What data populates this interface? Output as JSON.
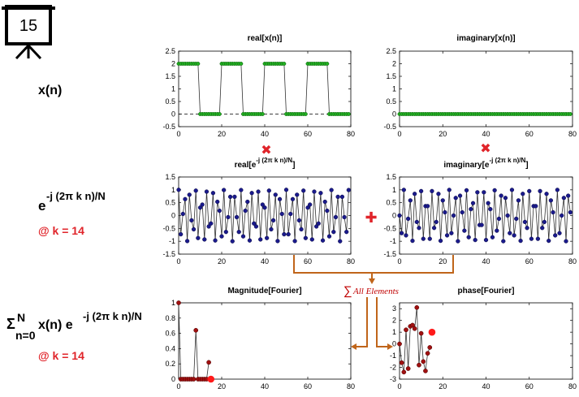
{
  "slide_number": "15",
  "row_labels": {
    "signal": "x(n)",
    "basis_prefix": "e",
    "basis_exponent": "-j (2π k n)/N",
    "basis_k": "@ k = 14",
    "sum_sigma": "Σ",
    "sum_upper": "N",
    "sum_lower": "n=0",
    "sum_body": "x(n) e",
    "sum_exponent": "-j (2π k n)/N",
    "sum_k": "@ k = 14"
  },
  "operators": {
    "multiply_symbol": "✖",
    "add_symbol": "✚",
    "sum_symbol": "∑",
    "sum_label": "All Elements"
  },
  "colors": {
    "green_marker": "#22b022",
    "blue_marker": "#1a1a8c",
    "red_marker": "#a01010",
    "highlight_red": "#ff1a1a",
    "line_gray": "#333333",
    "arrow_orange": "#c0651a",
    "operator_red": "#e0242a"
  },
  "chart_data": [
    {
      "id": "real-x",
      "type": "line",
      "title": "real[x(n)]",
      "marker_color": "green",
      "x": [
        0,
        1,
        2,
        3,
        4,
        5,
        6,
        7,
        8,
        9,
        10,
        11,
        12,
        13,
        14,
        15,
        16,
        17,
        18,
        19,
        20,
        21,
        22,
        23,
        24,
        25,
        26,
        27,
        28,
        29,
        30,
        31,
        32,
        33,
        34,
        35,
        36,
        37,
        38,
        39,
        40,
        41,
        42,
        43,
        44,
        45,
        46,
        47,
        48,
        49,
        50,
        51,
        52,
        53,
        54,
        55,
        56,
        57,
        58,
        59,
        60,
        61,
        62,
        63,
        64,
        65,
        66,
        67,
        68,
        69,
        70,
        71,
        72,
        73,
        74,
        75,
        76,
        77,
        78,
        79
      ],
      "y": [
        2,
        2,
        2,
        2,
        2,
        2,
        2,
        2,
        2,
        2,
        0,
        0,
        0,
        0,
        0,
        0,
        0,
        0,
        0,
        0,
        2,
        2,
        2,
        2,
        2,
        2,
        2,
        2,
        2,
        2,
        0,
        0,
        0,
        0,
        0,
        0,
        0,
        0,
        0,
        0,
        2,
        2,
        2,
        2,
        2,
        2,
        2,
        2,
        2,
        2,
        0,
        0,
        0,
        0,
        0,
        0,
        0,
        0,
        0,
        0,
        2,
        2,
        2,
        2,
        2,
        2,
        2,
        2,
        2,
        2,
        0,
        0,
        0,
        0,
        0,
        0,
        0,
        0,
        0,
        0
      ],
      "xlim": [
        0,
        80
      ],
      "ylim": [
        -0.5,
        2.5
      ],
      "xticks": [
        0,
        20,
        40,
        60,
        80
      ],
      "yticks": [
        -0.5,
        0,
        0.5,
        1,
        1.5,
        2,
        2.5
      ],
      "zero_line": "dashed"
    },
    {
      "id": "imag-x",
      "type": "line",
      "title": "imaginary[x(n)]",
      "marker_color": "green",
      "x": [
        0,
        1,
        2,
        3,
        4,
        5,
        6,
        7,
        8,
        9,
        10,
        11,
        12,
        13,
        14,
        15,
        16,
        17,
        18,
        19,
        20,
        21,
        22,
        23,
        24,
        25,
        26,
        27,
        28,
        29,
        30,
        31,
        32,
        33,
        34,
        35,
        36,
        37,
        38,
        39,
        40,
        41,
        42,
        43,
        44,
        45,
        46,
        47,
        48,
        49,
        50,
        51,
        52,
        53,
        54,
        55,
        56,
        57,
        58,
        59,
        60,
        61,
        62,
        63,
        64,
        65,
        66,
        67,
        68,
        69,
        70,
        71,
        72,
        73,
        74,
        75,
        76,
        77,
        78,
        79
      ],
      "y": [
        0,
        0,
        0,
        0,
        0,
        0,
        0,
        0,
        0,
        0,
        0,
        0,
        0,
        0,
        0,
        0,
        0,
        0,
        0,
        0,
        0,
        0,
        0,
        0,
        0,
        0,
        0,
        0,
        0,
        0,
        0,
        0,
        0,
        0,
        0,
        0,
        0,
        0,
        0,
        0,
        0,
        0,
        0,
        0,
        0,
        0,
        0,
        0,
        0,
        0,
        0,
        0,
        0,
        0,
        0,
        0,
        0,
        0,
        0,
        0,
        0,
        0,
        0,
        0,
        0,
        0,
        0,
        0,
        0,
        0,
        0,
        0,
        0,
        0,
        0,
        0,
        0,
        0,
        0,
        0
      ],
      "xlim": [
        0,
        80
      ],
      "ylim": [
        -0.5,
        2.5
      ],
      "xticks": [
        0,
        20,
        40,
        60,
        80
      ],
      "yticks": [
        -0.5,
        0,
        0.5,
        1,
        1.5,
        2,
        2.5
      ],
      "zero_line": "dashed"
    },
    {
      "id": "real-basis",
      "type": "line",
      "title": "real[e",
      "title_sup": "-j (2π k n)/N",
      "title_end": "]",
      "marker_color": "blue",
      "x": [
        0,
        1,
        2,
        3,
        4,
        5,
        6,
        7,
        8,
        9,
        10,
        11,
        12,
        13,
        14,
        15,
        16,
        17,
        18,
        19,
        20,
        21,
        22,
        23,
        24,
        25,
        26,
        27,
        28,
        29,
        30,
        31,
        32,
        33,
        34,
        35,
        36,
        37,
        38,
        39,
        40,
        41,
        42,
        43,
        44,
        45,
        46,
        47,
        48,
        49,
        50,
        51,
        52,
        53,
        54,
        55,
        56,
        57,
        58,
        59,
        60,
        61,
        62,
        63,
        64,
        65,
        66,
        67,
        68,
        69,
        70,
        71,
        72,
        73,
        74,
        75,
        76,
        77,
        78,
        79
      ],
      "y": [
        1,
        -0.729,
        0.063,
        0.637,
        -0.992,
        0.809,
        -0.187,
        -0.536,
        0.969,
        -0.876,
        0.309,
        0.426,
        -0.93,
        0.93,
        -0.426,
        -0.309,
        0.876,
        -0.969,
        0.536,
        0.187,
        -0.809,
        0.992,
        -0.637,
        -0.063,
        0.729,
        -1,
        0.729,
        -0.063,
        -0.637,
        0.992,
        -0.809,
        0.187,
        0.536,
        -0.969,
        0.876,
        -0.309,
        -0.426,
        0.93,
        -0.93,
        0.426,
        0.309,
        -0.876,
        0.969,
        -0.536,
        -0.187,
        0.809,
        -0.992,
        0.637,
        0.063,
        -0.729,
        1,
        -0.729,
        0.063,
        0.637,
        -0.992,
        0.809,
        -0.187,
        -0.536,
        0.969,
        -0.876,
        0.309,
        0.426,
        -0.93,
        0.93,
        -0.426,
        -0.309,
        0.876,
        -0.969,
        0.536,
        0.187,
        -0.809,
        0.992,
        -0.637,
        -0.063,
        0.729,
        -1,
        0.729,
        -0.063,
        -0.637,
        0.992
      ],
      "xlim": [
        0,
        80
      ],
      "ylim": [
        -1.5,
        1.5
      ],
      "xticks": [
        0,
        20,
        40,
        60,
        80
      ],
      "yticks": [
        -1.5,
        -1,
        -0.5,
        0,
        0.5,
        1,
        1.5
      ]
    },
    {
      "id": "imag-basis",
      "type": "line",
      "title": "imaginary[e",
      "title_sup": "-j (2π k n)/N",
      "title_end": "]",
      "marker_color": "blue",
      "x": [
        0,
        1,
        2,
        3,
        4,
        5,
        6,
        7,
        8,
        9,
        10,
        11,
        12,
        13,
        14,
        15,
        16,
        17,
        18,
        19,
        20,
        21,
        22,
        23,
        24,
        25,
        26,
        27,
        28,
        29,
        30,
        31,
        32,
        33,
        34,
        35,
        36,
        37,
        38,
        39,
        40,
        41,
        42,
        43,
        44,
        45,
        46,
        47,
        48,
        49,
        50,
        51,
        52,
        53,
        54,
        55,
        56,
        57,
        58,
        59,
        60,
        61,
        62,
        63,
        64,
        65,
        66,
        67,
        68,
        69,
        70,
        71,
        72,
        73,
        74,
        75,
        76,
        77,
        78,
        79
      ],
      "y": [
        0,
        -0.685,
        0.998,
        -0.771,
        -0.125,
        0.588,
        -0.982,
        0.844,
        -0.249,
        -0.482,
        0.951,
        -0.905,
        0.368,
        0.368,
        -0.905,
        0.951,
        -0.482,
        -0.249,
        0.844,
        -0.982,
        0.588,
        0.125,
        -0.771,
        0.998,
        -0.685,
        0,
        0.685,
        -0.998,
        0.771,
        0.125,
        -0.588,
        0.982,
        -0.844,
        0.249,
        0.482,
        -0.951,
        0.905,
        -0.368,
        -0.368,
        0.905,
        -0.951,
        0.482,
        0.249,
        -0.844,
        0.982,
        -0.588,
        -0.125,
        0.771,
        -0.998,
        0.685,
        0,
        -0.685,
        0.998,
        -0.771,
        -0.125,
        0.588,
        -0.982,
        0.844,
        -0.249,
        -0.482,
        0.951,
        -0.905,
        0.368,
        0.368,
        -0.905,
        0.951,
        -0.482,
        -0.249,
        0.844,
        -0.982,
        0.588,
        0.125,
        -0.771,
        0.998,
        -0.685,
        0,
        0.685,
        -0.998,
        0.771,
        0.125
      ],
      "xlim": [
        0,
        80
      ],
      "ylim": [
        -1.5,
        1.5
      ],
      "xticks": [
        0,
        20,
        40,
        60,
        80
      ],
      "yticks": [
        -1.5,
        -1,
        -0.5,
        0,
        0.5,
        1,
        1.5
      ]
    },
    {
      "id": "magnitude",
      "type": "line",
      "title": "Magnitude[Fourier]",
      "marker_color": "red",
      "x": [
        0,
        1,
        2,
        3,
        4,
        5,
        6,
        7,
        8,
        9,
        10,
        11,
        12,
        13,
        14
      ],
      "y": [
        1,
        0,
        0,
        0,
        0,
        0,
        0,
        0,
        0.64,
        0,
        0,
        0,
        0,
        0,
        0.22
      ],
      "highlight": {
        "x": 15,
        "y": 0
      },
      "xlim": [
        0,
        80
      ],
      "ylim": [
        0,
        1
      ],
      "xticks": [
        0,
        20,
        40,
        60,
        80
      ],
      "yticks": [
        0,
        0.2,
        0.4,
        0.6,
        0.8,
        1
      ]
    },
    {
      "id": "phase",
      "type": "line",
      "title": "phase[Fourier]",
      "marker_color": "red",
      "x": [
        0,
        1,
        2,
        3,
        4,
        5,
        6,
        7,
        8,
        9,
        10,
        11,
        12,
        13,
        14
      ],
      "y": [
        0,
        -1.6,
        -2.4,
        1.2,
        -2.1,
        1.5,
        1.6,
        1.3,
        3.1,
        -1.8,
        0.9,
        -1.5,
        -2.3,
        -0.8,
        -0.3
      ],
      "highlight": {
        "x": 15,
        "y": 1.0
      },
      "xlim": [
        0,
        80
      ],
      "ylim": [
        -3,
        3.5
      ],
      "xticks": [
        0,
        20,
        40,
        60,
        80
      ],
      "yticks": [
        -3,
        -2,
        -1,
        0,
        1,
        2,
        3
      ]
    }
  ]
}
